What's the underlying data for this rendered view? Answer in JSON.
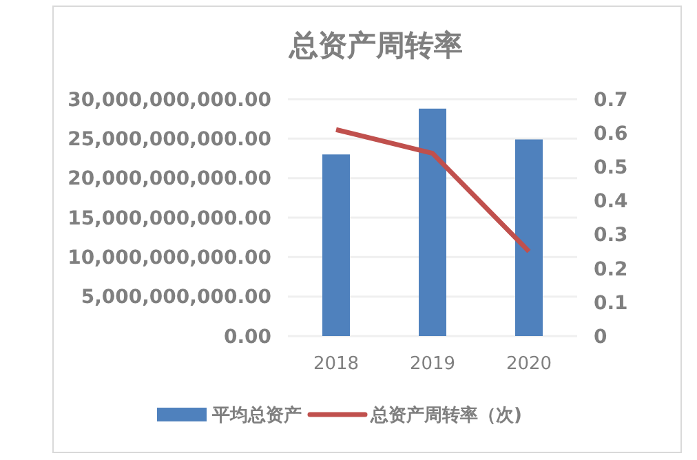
{
  "chart_data": {
    "type": "bar",
    "title": "总资产周转率",
    "categories": [
      "2018",
      "2019",
      "2020"
    ],
    "series": [
      {
        "name": "平均总资产",
        "color": "#4f81bd",
        "values": [
          23000000000,
          28800000000,
          24900000000
        ]
      },
      {
        "name": "总资产周转率（次)",
        "type": "line",
        "axis": "y2",
        "color": "#c0504d",
        "values": [
          0.61,
          0.54,
          0.25
        ]
      }
    ],
    "ylim": [
      0,
      30000000000
    ],
    "yticks": [
      {
        "value": 0,
        "label": "0.00"
      },
      {
        "value": 5000000000,
        "label": "5,000,000,000.00"
      },
      {
        "value": 10000000000,
        "label": "10,000,000,000.00"
      },
      {
        "value": 15000000000,
        "label": "15,000,000,000.00"
      },
      {
        "value": 20000000000,
        "label": "20,000,000,000.00"
      },
      {
        "value": 25000000000,
        "label": "25,000,000,000.00"
      },
      {
        "value": 30000000000,
        "label": "30,000,000,000.00"
      }
    ],
    "y2lim": [
      0,
      0.7
    ],
    "y2ticks": [
      0,
      0.1,
      0.2,
      0.3,
      0.4,
      0.5,
      0.6,
      0.7
    ],
    "grid": "y",
    "legend": "bottom",
    "marker": "none",
    "line_style": "solid"
  }
}
